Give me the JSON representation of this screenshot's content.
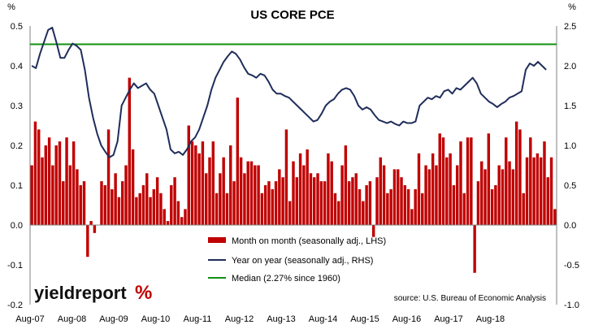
{
  "chart_data": {
    "type": "bar",
    "title": "US CORE PCE",
    "left_axis": {
      "unit": "%",
      "ylim": [
        -0.2,
        0.5
      ],
      "ticks": [
        "-0.2",
        "-0.1",
        "0.0",
        "0.1",
        "0.2",
        "0.3",
        "0.4",
        "0.5"
      ]
    },
    "right_axis": {
      "unit": "%",
      "ylim": [
        -1.0,
        2.5
      ],
      "ticks": [
        "-1.0",
        "-0.5",
        "0.0",
        "0.5",
        "1.0",
        "1.5",
        "2.0",
        "2.5"
      ]
    },
    "x_tick_labels": [
      "Aug-07",
      "Aug-08",
      "Aug-09",
      "Aug-10",
      "Aug-11",
      "Aug-12",
      "Aug-13",
      "Aug-14",
      "Aug-15",
      "Aug-16",
      "Aug-17",
      "Aug-18"
    ],
    "x_start": "Aug-07",
    "colors": {
      "bars": "#c00000",
      "yoy_line": "#1f2d5a",
      "median_line": "#109010",
      "logo_accent": "#c00000"
    },
    "series": [
      {
        "name": "Month on month (seasonally adj., LHS)",
        "type": "bar",
        "axis": "left",
        "values": [
          0.15,
          0.26,
          0.24,
          0.17,
          0.2,
          0.22,
          0.15,
          0.2,
          0.21,
          0.11,
          0.22,
          0.15,
          0.21,
          0.14,
          0.1,
          0.11,
          -0.08,
          0.01,
          -0.02,
          0.0,
          0.11,
          0.1,
          0.24,
          0.09,
          0.13,
          0.07,
          0.11,
          0.15,
          0.37,
          0.19,
          0.07,
          0.08,
          0.1,
          0.13,
          0.07,
          0.09,
          0.12,
          0.08,
          0.04,
          0.01,
          0.1,
          0.12,
          0.06,
          0.02,
          0.04,
          0.25,
          0.21,
          0.2,
          0.18,
          0.21,
          0.13,
          0.17,
          0.21,
          0.08,
          0.13,
          0.17,
          0.08,
          0.2,
          0.11,
          0.32,
          0.17,
          0.13,
          0.16,
          0.16,
          0.15,
          0.15,
          0.08,
          0.1,
          0.11,
          0.09,
          0.11,
          0.14,
          0.12,
          0.24,
          0.06,
          0.16,
          0.12,
          0.18,
          0.15,
          0.19,
          0.13,
          0.12,
          0.13,
          0.11,
          0.11,
          0.18,
          0.16,
          0.08,
          0.06,
          0.15,
          0.2,
          0.11,
          0.12,
          0.13,
          0.09,
          0.06,
          0.1,
          0.11,
          -0.03,
          0.12,
          0.17,
          0.15,
          0.08,
          0.09,
          0.14,
          0.14,
          0.12,
          0.1,
          0.09,
          0.04,
          0.09,
          0.18,
          0.08,
          0.15,
          0.14,
          0.18,
          0.15,
          0.23,
          0.22,
          0.17,
          0.18,
          0.1,
          0.15,
          0.21,
          0.08,
          0.22,
          0.22,
          -0.12,
          0.11,
          0.16,
          0.14,
          0.23,
          0.09,
          0.1,
          0.15,
          0.14,
          0.22,
          0.16,
          0.14,
          0.26,
          0.24,
          0.08,
          0.17,
          0.22,
          0.17,
          0.18,
          0.17,
          0.21,
          0.12,
          0.17,
          0.04
        ]
      },
      {
        "name": "Year on year (seasonally adj., RHS)",
        "type": "line",
        "axis": "right",
        "values": [
          2.0,
          1.97,
          2.15,
          2.3,
          2.45,
          2.48,
          2.3,
          2.1,
          2.1,
          2.2,
          2.28,
          2.25,
          2.2,
          1.95,
          1.6,
          1.35,
          1.15,
          1.0,
          0.92,
          0.85,
          0.88,
          1.05,
          1.5,
          1.6,
          1.7,
          1.78,
          1.72,
          1.75,
          1.78,
          1.7,
          1.65,
          1.5,
          1.35,
          1.2,
          0.95,
          0.9,
          0.92,
          0.88,
          0.95,
          1.05,
          1.1,
          1.2,
          1.35,
          1.5,
          1.7,
          1.85,
          1.95,
          2.05,
          2.12,
          2.18,
          2.15,
          2.08,
          1.98,
          1.9,
          1.88,
          1.85,
          1.9,
          1.88,
          1.8,
          1.7,
          1.65,
          1.65,
          1.62,
          1.6,
          1.55,
          1.5,
          1.45,
          1.4,
          1.35,
          1.3,
          1.32,
          1.4,
          1.5,
          1.55,
          1.58,
          1.65,
          1.7,
          1.72,
          1.7,
          1.62,
          1.5,
          1.45,
          1.48,
          1.45,
          1.38,
          1.32,
          1.3,
          1.28,
          1.3,
          1.27,
          1.25,
          1.3,
          1.28,
          1.28,
          1.3,
          1.5,
          1.55,
          1.6,
          1.58,
          1.62,
          1.6,
          1.68,
          1.7,
          1.65,
          1.72,
          1.7,
          1.75,
          1.8,
          1.85,
          1.78,
          1.65,
          1.6,
          1.55,
          1.52,
          1.48,
          1.52,
          1.55,
          1.6,
          1.62,
          1.65,
          1.68,
          1.95,
          2.03,
          2.0,
          2.05,
          2.0,
          1.95
        ]
      },
      {
        "name": "Median (2.27% since 1960)",
        "type": "line",
        "axis": "right",
        "values": [
          2.27
        ]
      }
    ],
    "legend": [
      {
        "label": "Month on month (seasonally adj., LHS)",
        "swatch": "bar"
      },
      {
        "label": "Year on year (seasonally adj., RHS)",
        "swatch": "line-navy"
      },
      {
        "label": "Median (2.27% since 1960)",
        "swatch": "line-green"
      }
    ],
    "legend_placement": "bottom-center",
    "grid": false,
    "source": "source: U.S. Bureau of Economic Analysis",
    "logo": {
      "text": "yieldreport",
      "symbol": "%"
    }
  }
}
